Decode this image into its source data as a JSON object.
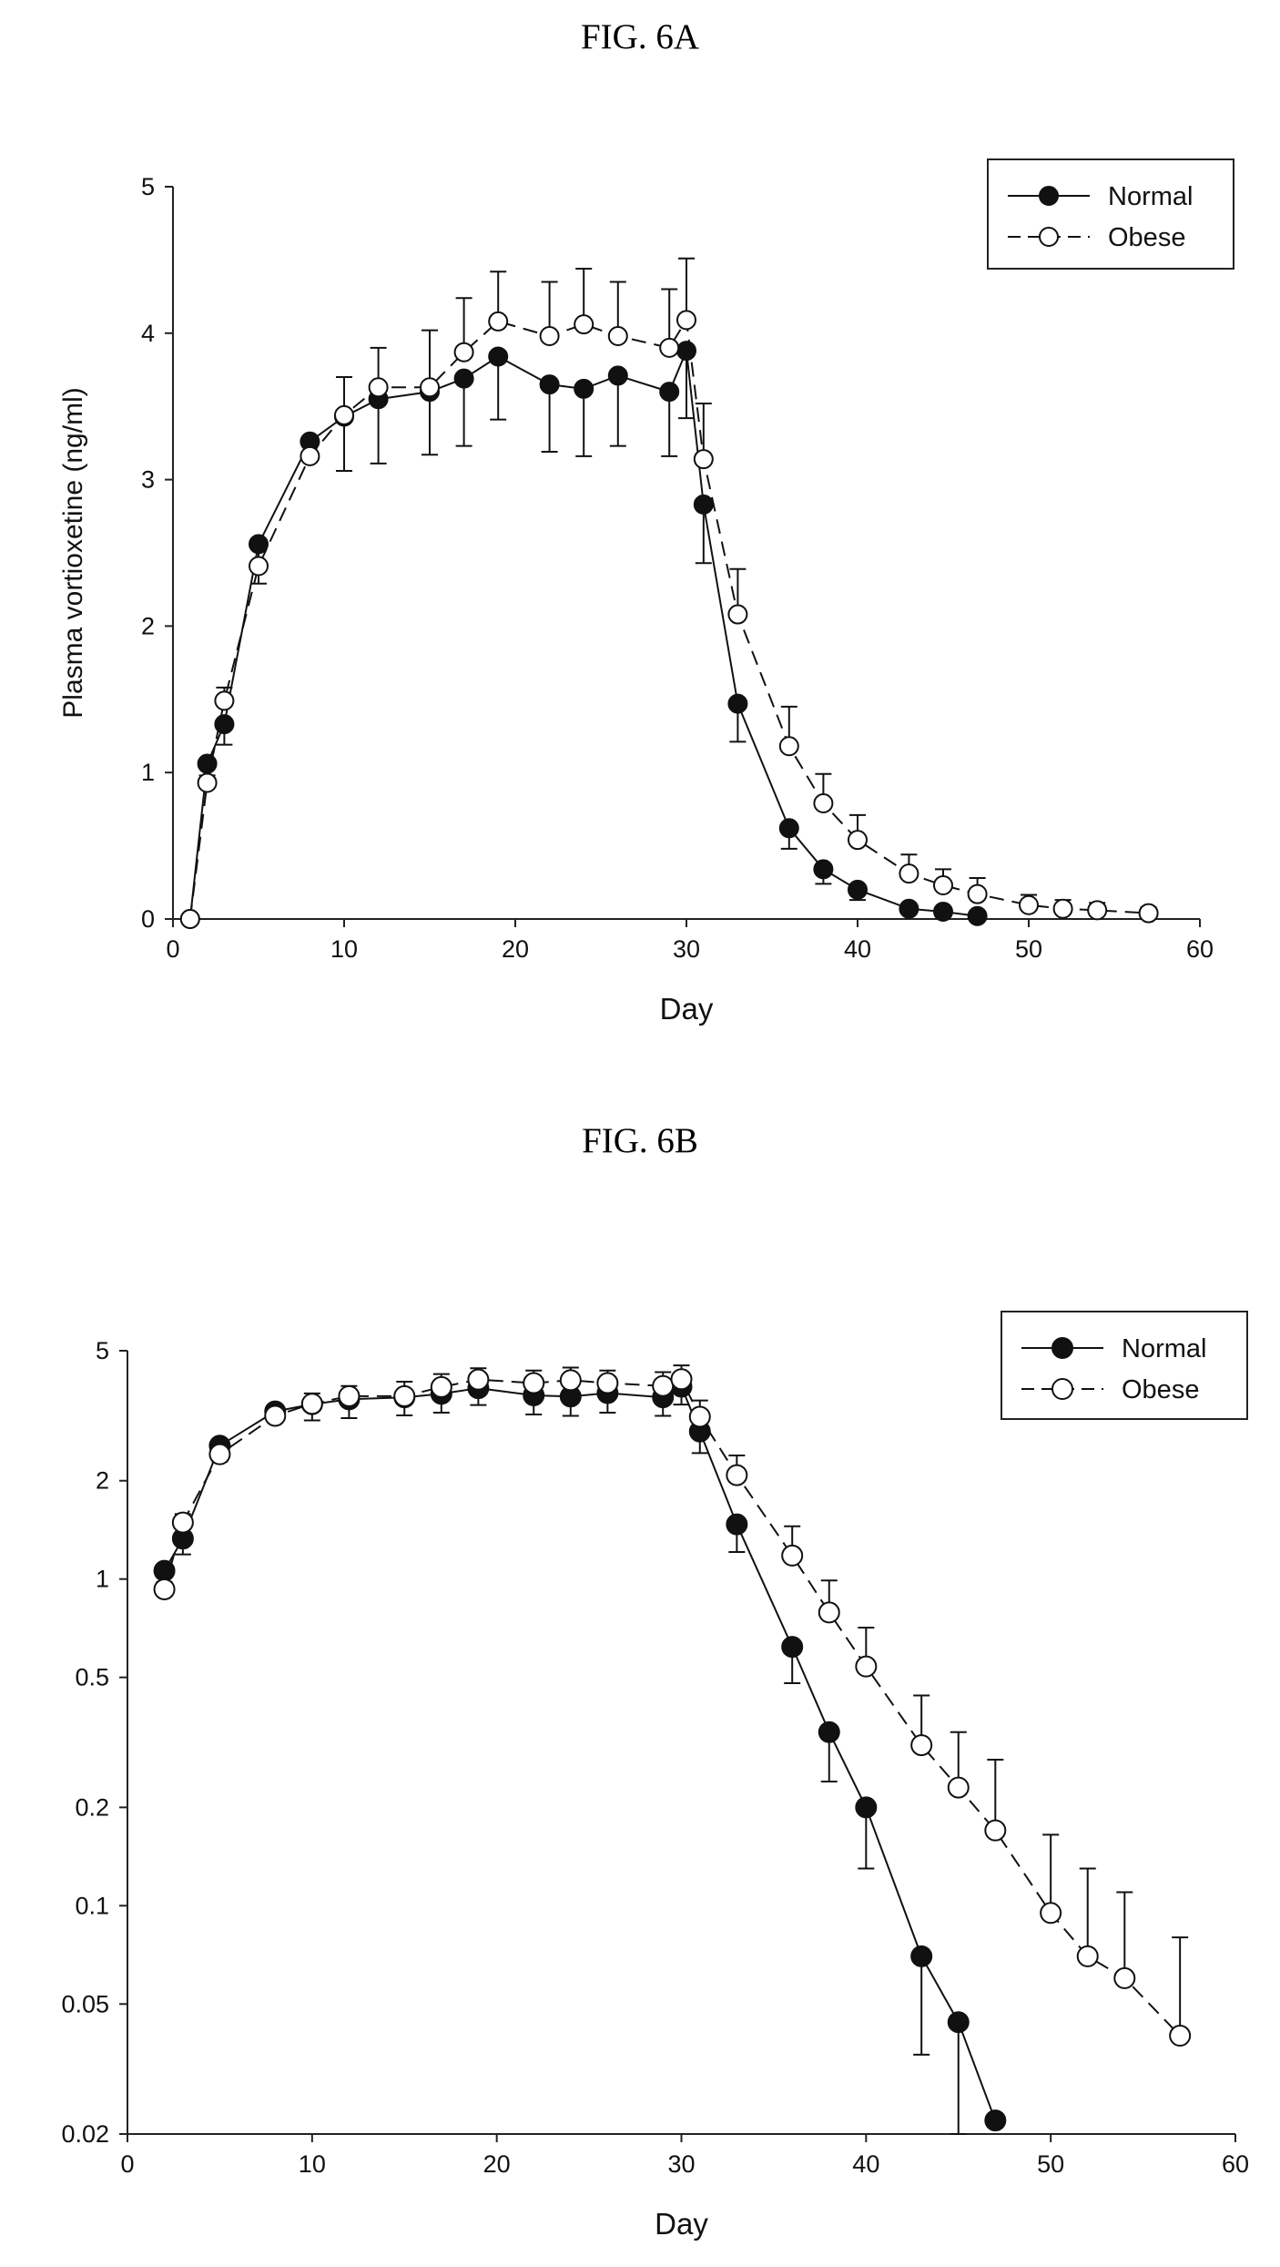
{
  "figures": [
    {
      "title": "FIG. 6A"
    },
    {
      "title": "FIG. 6B"
    }
  ],
  "chart_data": [
    {
      "type": "line",
      "title": "FIG. 6A",
      "xlabel": "Day",
      "ylabel": "Plasma vortioxetine (ng/ml)",
      "xlim": [
        0,
        60
      ],
      "ylim": [
        0,
        5
      ],
      "yscale": "linear",
      "xticks": [
        0,
        10,
        20,
        30,
        40,
        50,
        60
      ],
      "yticks": [
        0,
        1,
        2,
        3,
        4,
        5
      ],
      "ytick_labels": [
        "0",
        "1",
        "2",
        "3",
        "4",
        "5"
      ],
      "legend_position": "top-right",
      "series": [
        {
          "name": "Normal",
          "marker": "filled-circle",
          "line": "solid",
          "x": [
            1,
            2,
            3,
            5,
            8,
            10,
            12,
            15,
            17,
            19,
            22,
            24,
            26,
            29,
            30,
            31,
            33,
            36,
            38,
            40,
            43,
            45,
            47
          ],
          "y": [
            0,
            1.06,
            1.33,
            2.56,
            3.26,
            3.43,
            3.55,
            3.6,
            3.69,
            3.84,
            3.65,
            3.62,
            3.71,
            3.6,
            3.88,
            2.83,
            1.47,
            0.62,
            0.34,
            0.2,
            0.07,
            0.05,
            0.02
          ],
          "error": [
            0,
            0.1,
            0.14,
            0.27,
            0.07,
            0.37,
            0.44,
            0.43,
            0.46,
            0.43,
            0.46,
            0.46,
            0.48,
            0.44,
            0.46,
            0.4,
            0.26,
            0.14,
            0.1,
            0.07,
            0.03,
            0.02,
            0.01
          ]
        },
        {
          "name": "Obese",
          "marker": "open-circle",
          "line": "dashed",
          "x": [
            1,
            2,
            3,
            5,
            8,
            10,
            12,
            15,
            17,
            19,
            22,
            24,
            26,
            29,
            30,
            31,
            33,
            36,
            38,
            40,
            43,
            45,
            47,
            50,
            52,
            54,
            57
          ],
          "y": [
            0,
            0.93,
            1.49,
            2.41,
            3.16,
            3.44,
            3.63,
            3.63,
            3.87,
            4.08,
            3.98,
            4.06,
            3.98,
            3.9,
            4.09,
            3.14,
            2.08,
            1.18,
            0.79,
            0.54,
            0.31,
            0.23,
            0.17,
            0.095,
            0.07,
            0.06,
            0.04
          ],
          "error": [
            0,
            0.05,
            0.09,
            0.16,
            0.12,
            0.26,
            0.27,
            0.39,
            0.37,
            0.34,
            0.37,
            0.38,
            0.37,
            0.4,
            0.42,
            0.38,
            0.31,
            0.27,
            0.2,
            0.17,
            0.13,
            0.11,
            0.11,
            0.07,
            0.06,
            0.05,
            0.04
          ]
        }
      ]
    },
    {
      "type": "line",
      "title": "FIG. 6B",
      "xlabel": "Day",
      "ylabel": "",
      "xlim": [
        0,
        60
      ],
      "ylim": [
        0.02,
        5
      ],
      "yscale": "log",
      "xticks": [
        0,
        10,
        20,
        30,
        40,
        50,
        60
      ],
      "yticks": [
        0.02,
        0.05,
        0.1,
        0.2,
        0.5,
        1,
        2,
        5
      ],
      "ytick_labels": [
        "0.02",
        "0.05",
        "0.1",
        "0.2",
        "0.5",
        "1",
        "2",
        "5"
      ],
      "legend_position": "top-right",
      "series": [
        {
          "name": "Normal",
          "marker": "filled-circle",
          "line": "solid",
          "x": [
            2,
            3,
            5,
            8,
            10,
            12,
            15,
            17,
            19,
            22,
            24,
            26,
            29,
            30,
            31,
            33,
            36,
            38,
            40,
            43,
            45,
            47
          ],
          "y": [
            1.06,
            1.33,
            2.56,
            3.26,
            3.43,
            3.55,
            3.6,
            3.69,
            3.84,
            3.65,
            3.62,
            3.71,
            3.6,
            3.88,
            2.83,
            1.47,
            0.62,
            0.34,
            0.2,
            0.07,
            0.044,
            0.022
          ],
          "error": [
            0.1,
            0.14,
            0.27,
            0.07,
            0.37,
            0.44,
            0.43,
            0.46,
            0.43,
            0.46,
            0.46,
            0.48,
            0.44,
            0.46,
            0.4,
            0.26,
            0.14,
            0.1,
            0.07,
            0.035,
            0.024,
            0.0
          ]
        },
        {
          "name": "Obese",
          "marker": "open-circle",
          "line": "dashed",
          "x": [
            2,
            3,
            5,
            8,
            10,
            12,
            15,
            17,
            19,
            22,
            24,
            26,
            29,
            30,
            31,
            33,
            36,
            38,
            40,
            43,
            45,
            47,
            50,
            52,
            54,
            57
          ],
          "y": [
            0.93,
            1.49,
            2.41,
            3.16,
            3.44,
            3.63,
            3.63,
            3.87,
            4.08,
            3.98,
            4.06,
            3.98,
            3.9,
            4.09,
            3.14,
            2.08,
            1.18,
            0.79,
            0.54,
            0.31,
            0.23,
            0.17,
            0.095,
            0.07,
            0.06,
            0.04
          ],
          "error": [
            0.05,
            0.09,
            0.16,
            0.12,
            0.26,
            0.27,
            0.39,
            0.37,
            0.34,
            0.37,
            0.38,
            0.37,
            0.4,
            0.42,
            0.38,
            0.31,
            0.27,
            0.2,
            0.17,
            0.13,
            0.11,
            0.11,
            0.07,
            0.06,
            0.05,
            0.04
          ]
        }
      ]
    }
  ]
}
